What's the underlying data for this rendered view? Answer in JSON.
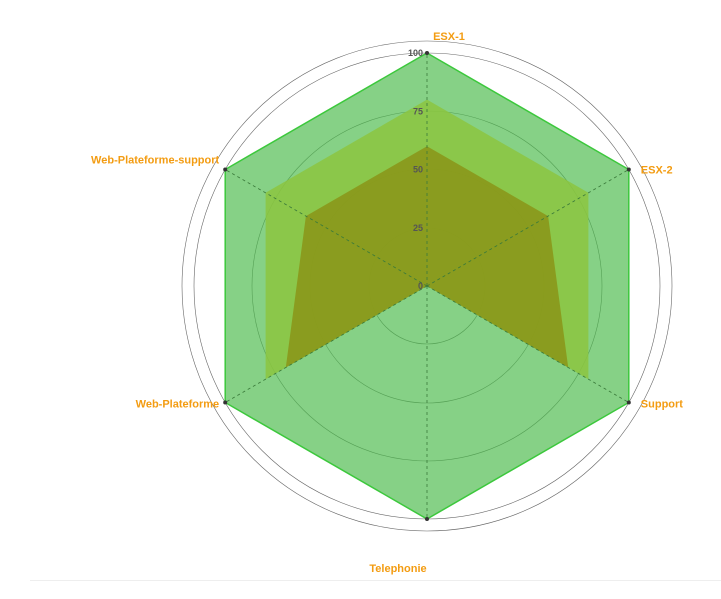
{
  "chart_data": {
    "type": "radar",
    "axes": [
      "ESX-1",
      "ESX-2",
      "Support",
      "Telephonie",
      "Web-Plateforme",
      "Web-Plateforme-support"
    ],
    "scale": {
      "min": 0,
      "max": 100,
      "ticks": [
        "0",
        "25",
        "50",
        "75",
        "100"
      ]
    },
    "series": [
      {
        "values": [
          100,
          100,
          100,
          100,
          100,
          100
        ],
        "color": "#4cbb4c",
        "opacity": 0.68
      },
      {
        "values": [
          80,
          80,
          80,
          0,
          80,
          80
        ],
        "color": "#8cc63f",
        "opacity": 0.85
      },
      {
        "values": [
          60,
          60,
          70,
          0,
          70,
          60
        ],
        "color": "#8a9418",
        "opacity": 0.85
      }
    ],
    "grid": true,
    "colors": {
      "label": "#f39c12",
      "grid": "#333333",
      "spoke": "#3a7a3a"
    }
  }
}
